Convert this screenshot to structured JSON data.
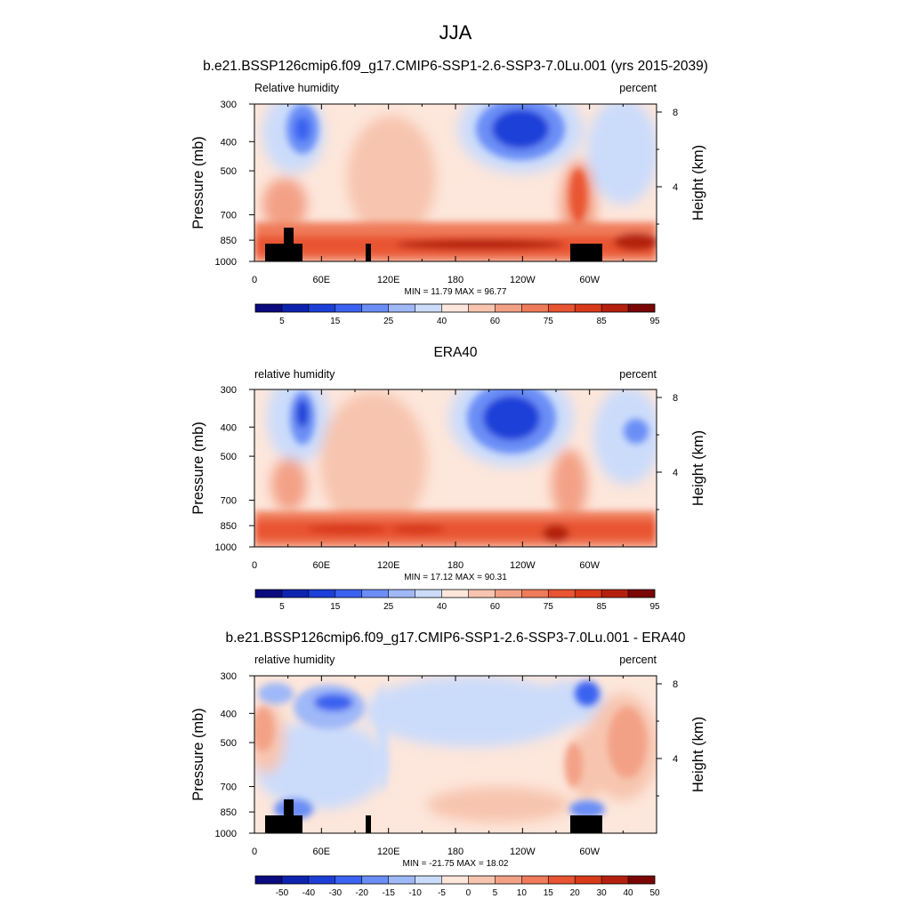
{
  "figure": {
    "title": "JJA"
  },
  "colors": {
    "rh_scale": [
      "#0b0b80",
      "#0d23b0",
      "#1c3fd8",
      "#3b62f0",
      "#6b8ef6",
      "#9fb8f8",
      "#cbdcfb",
      "#fde6db",
      "#f7c5af",
      "#f3a186",
      "#ef7b5a",
      "#e95432",
      "#d93a1a",
      "#b5200e",
      "#7a0606"
    ],
    "diff_scale": [
      "#0b0b80",
      "#0d23b0",
      "#1c3fd8",
      "#3b62f0",
      "#6b8ef6",
      "#9fb8f8",
      "#cbdcfb",
      "#fde6db",
      "#f7c5af",
      "#f3a186",
      "#ef7b5a",
      "#e95432",
      "#d93a1a",
      "#b5200e",
      "#7a0606"
    ]
  },
  "chart_data": [
    {
      "type": "heatmap",
      "title": "b.e21.BSSP126cmip6.f09_g17.CMIP6-SSP1-2.6-SSP3-7.0Lu.001 (yrs 2015-2039)",
      "left_label": "Relative humidity",
      "right_label": "percent",
      "ylabel": "Pressure (mb)",
      "y2label": "Height (km)",
      "x_ticks": [
        "0",
        "60E",
        "120E",
        "180",
        "120W",
        "60W"
      ],
      "y_ticks": [
        "300",
        "400",
        "500",
        "700",
        "850",
        "1000"
      ],
      "y2_ticks": [
        "8",
        "4"
      ],
      "stats": "MIN = 11.79  MAX = 96.77",
      "colorbar_labels": [
        "5",
        "15",
        "25",
        "40",
        "60",
        "75",
        "85",
        "95"
      ],
      "xlim": [
        0,
        360
      ],
      "ylim": [
        1000,
        300
      ],
      "fields": "model_rh"
    },
    {
      "type": "heatmap",
      "title": "ERA40",
      "left_label": "relative humidity",
      "right_label": "percent",
      "ylabel": "Pressure (mb)",
      "y2label": "Height (km)",
      "x_ticks": [
        "0",
        "60E",
        "120E",
        "180",
        "120W",
        "60W"
      ],
      "y_ticks": [
        "300",
        "400",
        "500",
        "700",
        "850",
        "1000"
      ],
      "y2_ticks": [
        "8",
        "4"
      ],
      "stats": "MIN = 17.12  MAX = 90.31",
      "colorbar_labels": [
        "5",
        "15",
        "25",
        "40",
        "60",
        "75",
        "85",
        "95"
      ],
      "xlim": [
        0,
        360
      ],
      "ylim": [
        1000,
        300
      ],
      "fields": "obs_rh"
    },
    {
      "type": "heatmap",
      "title": "b.e21.BSSP126cmip6.f09_g17.CMIP6-SSP1-2.6-SSP3-7.0Lu.001 - ERA40",
      "left_label": "relative humidity",
      "right_label": "percent",
      "ylabel": "Pressure (mb)",
      "y2label": "Height (km)",
      "x_ticks": [
        "0",
        "60E",
        "120E",
        "180",
        "120W",
        "60W"
      ],
      "y_ticks": [
        "300",
        "400",
        "500",
        "700",
        "850",
        "1000"
      ],
      "y2_ticks": [
        "8",
        "4"
      ],
      "stats": "MIN = -21.75  MAX = 18.02",
      "colorbar_labels": [
        "-50",
        "-40",
        "-30",
        "-20",
        "-15",
        "-10",
        "-5",
        "0",
        "5",
        "10",
        "15",
        "20",
        "30",
        "40",
        "50"
      ],
      "xlim": [
        0,
        360
      ],
      "ylim": [
        1000,
        300
      ],
      "fields": "diff_rh"
    }
  ]
}
